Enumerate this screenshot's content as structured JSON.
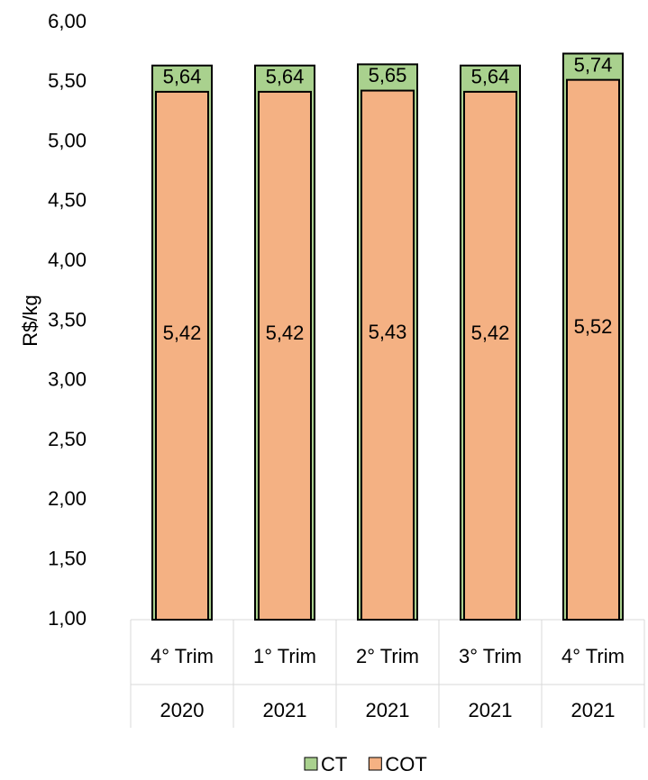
{
  "chart_data": {
    "type": "bar",
    "overlap": true,
    "y_label": "R$/kg",
    "categories": [
      [
        "4° Trim",
        "2020"
      ],
      [
        "1° Trim",
        "2021"
      ],
      [
        "2° Trim",
        "2021"
      ],
      [
        "3° Trim",
        "2021"
      ],
      [
        "4° Trim",
        "2021"
      ]
    ],
    "series": [
      {
        "name": "CT",
        "color": "#a9d18e",
        "values": [
          5.64,
          5.64,
          5.65,
          5.64,
          5.74
        ],
        "value_labels": [
          "5,64",
          "5,64",
          "5,65",
          "5,64",
          "5,74"
        ]
      },
      {
        "name": "COT",
        "color": "#f4b183",
        "values": [
          5.42,
          5.42,
          5.43,
          5.42,
          5.52
        ],
        "value_labels": [
          "5,42",
          "5,42",
          "5,43",
          "5,42",
          "5,52"
        ]
      }
    ],
    "ylim": [
      1,
      6
    ],
    "yticks": [
      {
        "value": 1,
        "label": "1,00"
      },
      {
        "value": 1.5,
        "label": "1,50"
      },
      {
        "value": 2,
        "label": "2,00"
      },
      {
        "value": 2.5,
        "label": "2,50"
      },
      {
        "value": 3,
        "label": "3,00"
      },
      {
        "value": 3.5,
        "label": "3,50"
      },
      {
        "value": 4,
        "label": "4,00"
      },
      {
        "value": 4.5,
        "label": "4,50"
      },
      {
        "value": 5,
        "label": "5,00"
      },
      {
        "value": 5.5,
        "label": "5,50"
      },
      {
        "value": 6,
        "label": "6,00"
      }
    ],
    "legend": "bottom",
    "grid": false
  }
}
